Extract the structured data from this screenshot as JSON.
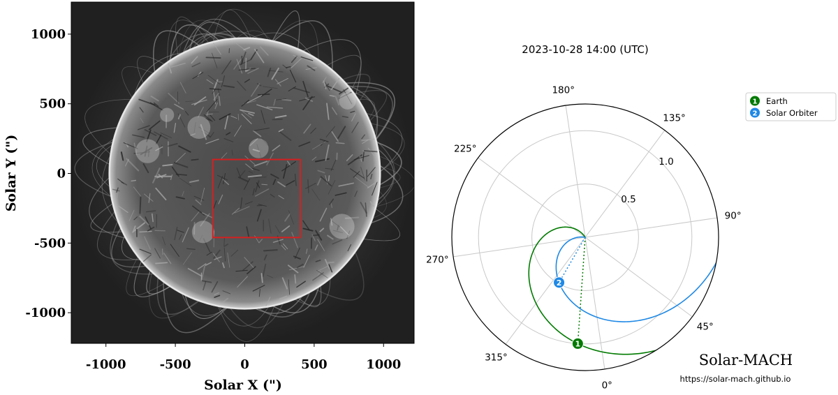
{
  "colors": {
    "earth": "#007a00",
    "solar_orbiter": "#1e88e5",
    "roi_box": "#d42020",
    "grid": "#c8c8c8",
    "sun_disk": "#5c5c5c",
    "sun_background": "#2a2a2a"
  },
  "chart_data": [
    {
      "type": "image",
      "xlabel": "Solar X (\")",
      "ylabel": "Solar Y (\")",
      "xlim": [
        -1250,
        1220
      ],
      "ylim": [
        -1220,
        1230
      ],
      "xticks": [
        -1000,
        -500,
        0,
        500,
        1000
      ],
      "yticks": [
        1000,
        500,
        0,
        -500,
        -1000
      ],
      "xtick_labels": [
        "-1000",
        "-500",
        "0",
        "500",
        "1000"
      ],
      "ytick_labels": [
        "1000",
        "500",
        "0",
        "-500",
        "-1000"
      ],
      "sun_radius_arcsec": 975,
      "roi_box": {
        "x0": -230,
        "x1": 400,
        "y0": -460,
        "y1": 100
      }
    },
    {
      "type": "polar",
      "title": "2023-10-28 14:00 (UTC)",
      "rmax": 1.25,
      "radial_ticks": [
        0.5,
        1.0
      ],
      "radial_tick_labels": [
        "0.5",
        "1.0"
      ],
      "angle_ticks": [
        0,
        45,
        90,
        135,
        180,
        225,
        270,
        315
      ],
      "angle_tick_labels": [
        "0°",
        "45°",
        "90°",
        "135°",
        "180°",
        "225°",
        "270°",
        "315°"
      ],
      "series": [
        {
          "name": "Earth",
          "marker_label": "1",
          "r": 1.0,
          "lon_deg": 356,
          "spiral_omega_rad_per_au": 2.5
        },
        {
          "name": "Solar Orbiter",
          "marker_label": "2",
          "r": 0.49,
          "lon_deg": 330,
          "spiral_omega_rad_per_au": 2.5
        }
      ],
      "legend": {
        "placement": "top-right"
      },
      "footer": {
        "title": "Solar-MACH",
        "url": "https://solar-mach.github.io"
      }
    }
  ]
}
